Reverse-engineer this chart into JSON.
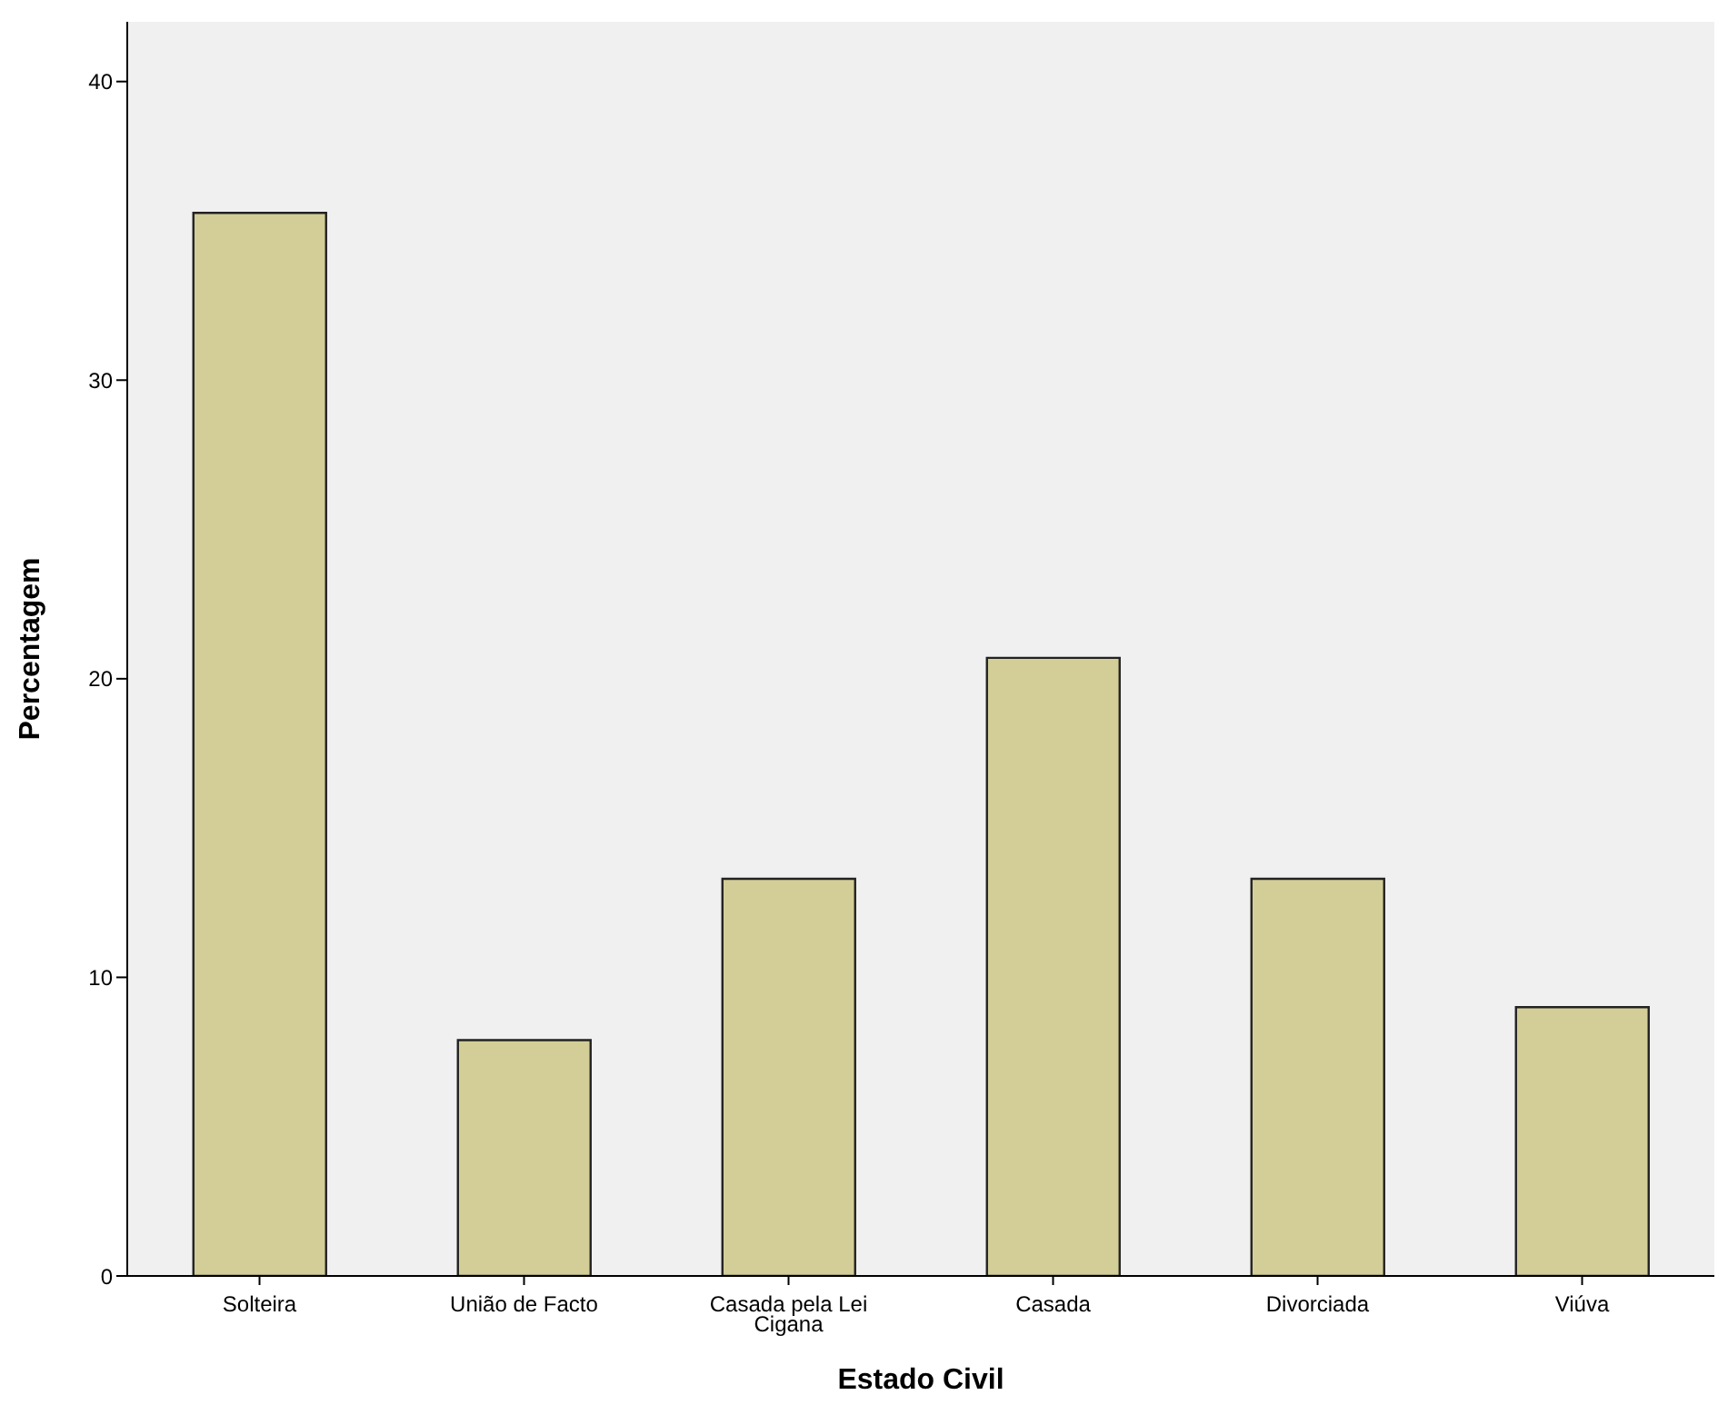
{
  "chart_data": {
    "type": "bar",
    "xlabel": "Estado Civil",
    "ylabel": "Percentagem",
    "categories": [
      "Solteira",
      "União de Facto",
      "Casada pela Lei Cigana",
      "Casada",
      "Divorciada",
      "Viúva"
    ],
    "values": [
      35.6,
      7.9,
      13.3,
      20.7,
      13.3,
      9.0
    ],
    "color": "#d3ce97",
    "ylim": [
      0,
      42
    ],
    "yticks": [
      0,
      10,
      20,
      30,
      40
    ],
    "grid": false,
    "legend": false
  }
}
